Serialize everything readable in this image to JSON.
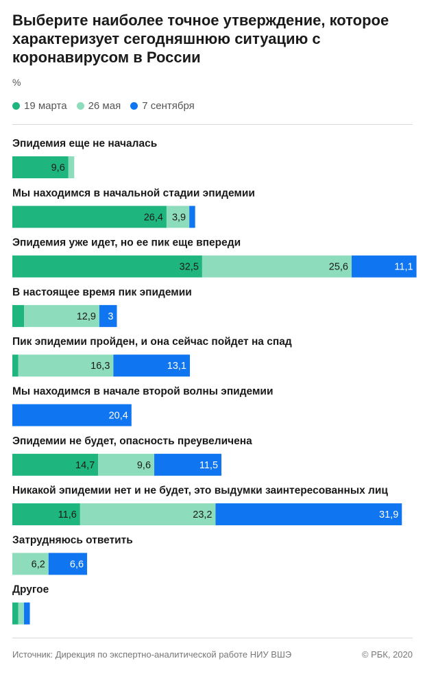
{
  "title": "Выберите наиболее точное утверждение, которое характеризует сегодняшнюю ситуацию с коронавирусом в России",
  "unit": "%",
  "footer": {
    "source": "Источник: Дирекция по экспертно-аналитической работе НИУ ВШЭ",
    "copyright": "© РБК, 2020"
  },
  "chart_data": {
    "type": "bar",
    "orientation": "horizontal",
    "stacked": true,
    "unit": "%",
    "legend_position": "top-left",
    "categories": [
      "Эпидемия еще не началась",
      "Мы находимся в начальной стадии эпидемии",
      "Эпидемия уже идет, но ее пик еще впереди",
      "В настоящее время пик эпидемии",
      "Пик эпидемии пройден, и она сейчас пойдет на спад",
      "Мы находимся в начале второй волны эпидемии",
      "Эпидемии не будет, опасность преувеличена",
      "Никакой эпидемии нет и не будет, это выдумки заинтересованных лиц",
      "Затрудняюсь ответить",
      "Другое"
    ],
    "series": [
      {
        "name": "19 марта",
        "color": "#1fb57f",
        "values": [
          9.6,
          26.4,
          32.5,
          2.0,
          1.0,
          null,
          14.7,
          11.6,
          null,
          1.0
        ],
        "labels": [
          "9,6",
          "26,4",
          "32,5",
          "",
          "",
          "",
          "14,7",
          "11,6",
          "",
          ""
        ]
      },
      {
        "name": "26 мая",
        "color": "#8ddcbb",
        "values": [
          1.0,
          3.9,
          25.6,
          12.9,
          16.3,
          null,
          9.6,
          23.2,
          6.2,
          1.0
        ],
        "labels": [
          "",
          "3,9",
          "25,6",
          "12,9",
          "16,3",
          "",
          "9,6",
          "23,2",
          "6,2",
          ""
        ]
      },
      {
        "name": "7 сентября",
        "color": "#0f75f0",
        "values": [
          null,
          1.0,
          11.1,
          3.0,
          13.1,
          20.4,
          11.5,
          31.9,
          6.6,
          1.0
        ],
        "labels": [
          "",
          "",
          "11,1",
          "3",
          "13,1",
          "20,4",
          "11,5",
          "31,9",
          "6,6",
          ""
        ]
      }
    ]
  }
}
